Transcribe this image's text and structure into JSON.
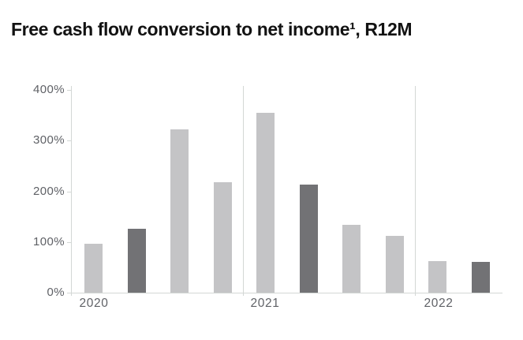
{
  "title": {
    "text": "Free cash flow conversion to net income¹, R12M"
  },
  "chart_data": {
    "type": "bar",
    "title": "Free cash flow conversion to net income¹, R12M",
    "xlabel": "",
    "ylabel": "",
    "ylim": [
      0,
      400
    ],
    "yticks": [
      0,
      100,
      200,
      300,
      400
    ],
    "ytick_labels": [
      "0%",
      "100%",
      "200%",
      "300%",
      "400%"
    ],
    "grid": "vertical year separator lines only, no horizontal gridlines",
    "legend_position": "none",
    "unit": "percent",
    "note": "quarterly rolling-12-month values grouped by year; second quarter of each year highlighted dark",
    "groups": [
      {
        "label": "2020",
        "bars": [
          {
            "value": 96,
            "emphasis": false
          },
          {
            "value": 126,
            "emphasis": true
          },
          {
            "value": 322,
            "emphasis": false
          },
          {
            "value": 218,
            "emphasis": false
          }
        ]
      },
      {
        "label": "2021",
        "bars": [
          {
            "value": 355,
            "emphasis": false
          },
          {
            "value": 214,
            "emphasis": true
          },
          {
            "value": 134,
            "emphasis": false
          },
          {
            "value": 112,
            "emphasis": false
          }
        ]
      },
      {
        "label": "2022",
        "bars": [
          {
            "value": 62,
            "emphasis": false
          },
          {
            "value": 60,
            "emphasis": true
          }
        ]
      }
    ],
    "colors": {
      "bar_light": "#c4c4c6",
      "bar_dark": "#727275",
      "axis_line": "#d3d7d5",
      "tick_label": "#5f6166",
      "title_text": "#121212",
      "background": "#ffffff"
    }
  }
}
